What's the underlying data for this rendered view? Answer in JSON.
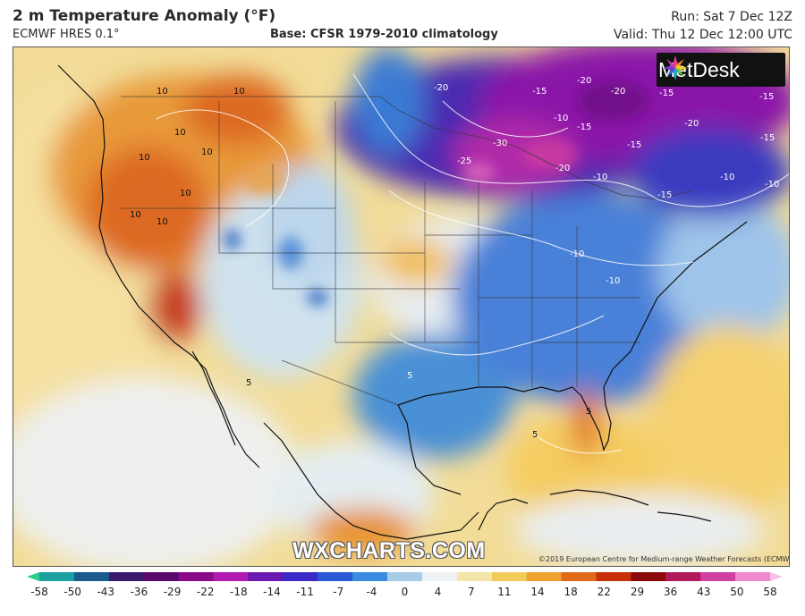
{
  "header": {
    "title": "2 m Temperature Anomaly (°F)",
    "model": "ECMWF HRES 0.1°",
    "base": "Base: CFSR 1979-2010 climatology",
    "run": "Run: Sat 7 Dec 12Z",
    "valid": "Valid: Thu 12 Dec 12:00 UTC"
  },
  "logo": {
    "text": "MetDesk",
    "icon": "metdesk-starburst-icon"
  },
  "watermark": "WXCHARTS.COM",
  "copyright": "©2019 European Centre for Medium-range Weather Forecasts (ECMWF)",
  "contour_labels": {
    "west": [
      "10",
      "10",
      "10",
      "10",
      "10",
      "10",
      "10",
      "10"
    ],
    "north": [
      "-20",
      "-15",
      "-20",
      "-20",
      "-15",
      "-15",
      "-20",
      "-15",
      "-30",
      "-25",
      "-20",
      "-15",
      "-10",
      "-15",
      "-10",
      "-15",
      "-10"
    ],
    "east": [
      "-10",
      "-10",
      "-10"
    ],
    "south": [
      "5",
      "5",
      "5",
      "5"
    ]
  },
  "colorbar": {
    "ticks": [
      "-58",
      "-50",
      "-43",
      "-36",
      "-29",
      "-22",
      "-18",
      "-14",
      "-11",
      "-7",
      "-4",
      "0",
      "4",
      "7",
      "11",
      "14",
      "18",
      "22",
      "29",
      "36",
      "43",
      "50",
      "58"
    ],
    "colors": [
      "#2ad08a",
      "#1ca0a0",
      "#1a5c8c",
      "#3a1a6e",
      "#5a0a6a",
      "#8a0a8a",
      "#b01ab0",
      "#6a1ab0",
      "#3a2ac8",
      "#2a5ad8",
      "#3a8ce0",
      "#a8cce8",
      "#eef2f4",
      "#f4e6a8",
      "#f2cc5a",
      "#eea030",
      "#e06a1a",
      "#c8300a",
      "#8c0a0a",
      "#b01a5a",
      "#d040a0",
      "#f08ad0",
      "#f8c0e8"
    ]
  }
}
